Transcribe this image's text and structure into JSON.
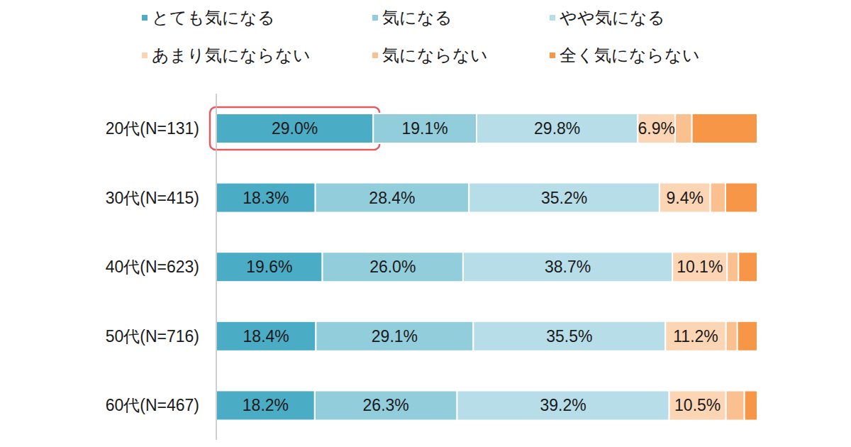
{
  "chart_data": {
    "type": "bar",
    "orientation": "horizontal",
    "stacked": true,
    "legend": "top",
    "grid": false,
    "tick_labels": "y",
    "categories": [
      "20代(N=131)",
      "30代(N=415)",
      "40代(N=623)",
      "50代(N=716)",
      "60代(N=467)"
    ],
    "xlim": [
      0,
      100
    ],
    "xticks": [
      0,
      100
    ],
    "series": [
      {
        "name": "とても気になる",
        "color": "#4bacc6",
        "data_labels": true,
        "values": [
          29.0,
          18.3,
          19.6,
          18.4,
          18.2
        ],
        "value_labels": [
          "29.0%",
          "18.3%",
          "19.6%",
          "18.4%",
          "18.2%"
        ]
      },
      {
        "name": "気になる",
        "color": "#92cddc",
        "data_labels": true,
        "values": [
          19.1,
          28.4,
          26.0,
          29.1,
          26.3
        ],
        "value_labels": [
          "19.1%",
          "28.4%",
          "26.0%",
          "29.1%",
          "26.3%"
        ]
      },
      {
        "name": "やや気になる",
        "color": "#b7dee8",
        "data_labels": true,
        "values": [
          29.8,
          35.2,
          38.7,
          35.5,
          39.2
        ],
        "value_labels": [
          "29.8%",
          "35.2%",
          "38.7%",
          "35.5%",
          "39.2%"
        ]
      },
      {
        "name": "あまり気にならない",
        "color": "#fcd5b5",
        "data_labels": true,
        "values": [
          6.9,
          9.4,
          10.1,
          11.2,
          10.5
        ],
        "value_labels": [
          "6.9%",
          "9.4%",
          "10.1%",
          "11.2%",
          "10.5%"
        ]
      },
      {
        "name": "気にならない",
        "color": "#fac090",
        "data_labels": false,
        "values": [
          3.1,
          2.8,
          2.1,
          2.1,
          3.4
        ]
      },
      {
        "name": "全く気にならない",
        "color": "#f79646",
        "data_labels": false,
        "values": [
          12.1,
          5.9,
          3.5,
          3.7,
          2.4
        ]
      }
    ]
  }
}
